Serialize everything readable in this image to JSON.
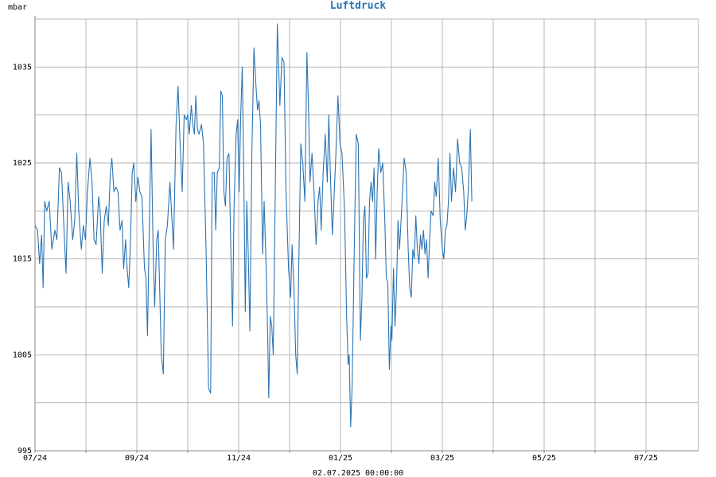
{
  "chart_data": {
    "type": "line",
    "title": "Luftdruck",
    "ylabel": "mbar",
    "footer": "02.07.2025 00:00:00",
    "ylim": [
      995,
      1040
    ],
    "y_ticks": [
      995,
      1005,
      1015,
      1025,
      1035
    ],
    "x_ticks": [
      {
        "label": "07/24",
        "month_index": 0
      },
      {
        "label": "09/24",
        "month_index": 2
      },
      {
        "label": "11/24",
        "month_index": 4
      },
      {
        "label": "01/25",
        "month_index": 6
      },
      {
        "label": "03/25",
        "month_index": 8
      },
      {
        "label": "05/25",
        "month_index": 10
      },
      {
        "label": "07/25",
        "month_index": 12
      }
    ],
    "grid": true,
    "colors": {
      "line": "#2b74b4",
      "title": "#2b74b4",
      "grid": "#b4b4b4",
      "axis": "#888888"
    },
    "series": [
      {
        "points": [
          [
            0.0,
            1018.5
          ],
          [
            0.05,
            1018
          ],
          [
            0.09,
            1014.5
          ],
          [
            0.13,
            1017.5
          ],
          [
            0.16,
            1012
          ],
          [
            0.19,
            1021
          ],
          [
            0.23,
            1020
          ],
          [
            0.28,
            1021
          ],
          [
            0.33,
            1016
          ],
          [
            0.39,
            1018
          ],
          [
            0.43,
            1017
          ],
          [
            0.48,
            1024.5
          ],
          [
            0.52,
            1024
          ],
          [
            0.57,
            1018
          ],
          [
            0.61,
            1013.5
          ],
          [
            0.65,
            1023
          ],
          [
            0.69,
            1021
          ],
          [
            0.74,
            1017
          ],
          [
            0.78,
            1019
          ],
          [
            0.82,
            1026
          ],
          [
            0.86,
            1020
          ],
          [
            0.91,
            1016
          ],
          [
            0.95,
            1018.5
          ],
          [
            0.99,
            1017
          ],
          [
            1.03,
            1022
          ],
          [
            1.08,
            1025.5
          ],
          [
            1.12,
            1023
          ],
          [
            1.16,
            1017
          ],
          [
            1.2,
            1016.5
          ],
          [
            1.25,
            1021.5
          ],
          [
            1.28,
            1020
          ],
          [
            1.32,
            1013.5
          ],
          [
            1.36,
            1019
          ],
          [
            1.4,
            1020.5
          ],
          [
            1.44,
            1018.5
          ],
          [
            1.48,
            1024
          ],
          [
            1.51,
            1025.5
          ],
          [
            1.55,
            1022
          ],
          [
            1.59,
            1022.5
          ],
          [
            1.63,
            1022
          ],
          [
            1.67,
            1018
          ],
          [
            1.71,
            1019
          ],
          [
            1.74,
            1014
          ],
          [
            1.78,
            1017
          ],
          [
            1.81,
            1014
          ],
          [
            1.84,
            1012
          ],
          [
            1.87,
            1016
          ],
          [
            1.91,
            1024
          ],
          [
            1.94,
            1025
          ],
          [
            1.98,
            1021
          ],
          [
            2.02,
            1023.5
          ],
          [
            2.06,
            1022
          ],
          [
            2.1,
            1021.5
          ],
          [
            2.15,
            1014
          ],
          [
            2.18,
            1013
          ],
          [
            2.21,
            1007
          ],
          [
            2.24,
            1017
          ],
          [
            2.28,
            1028.5
          ],
          [
            2.32,
            1016
          ],
          [
            2.35,
            1010
          ],
          [
            2.39,
            1017
          ],
          [
            2.42,
            1018
          ],
          [
            2.45,
            1011.5
          ],
          [
            2.48,
            1005
          ],
          [
            2.52,
            1003
          ],
          [
            2.56,
            1017
          ],
          [
            2.6,
            1018.5
          ],
          [
            2.65,
            1023
          ],
          [
            2.69,
            1019
          ],
          [
            2.72,
            1016
          ],
          [
            2.77,
            1029
          ],
          [
            2.81,
            1033
          ],
          [
            2.85,
            1027
          ],
          [
            2.89,
            1022
          ],
          [
            2.93,
            1030
          ],
          [
            2.97,
            1029.5
          ],
          [
            3.0,
            1030
          ],
          [
            3.03,
            1028
          ],
          [
            3.07,
            1031
          ],
          [
            3.1,
            1029
          ],
          [
            3.13,
            1028
          ],
          [
            3.16,
            1032
          ],
          [
            3.19,
            1028.5
          ],
          [
            3.22,
            1028
          ],
          [
            3.27,
            1029
          ],
          [
            3.31,
            1027
          ],
          [
            3.36,
            1016
          ],
          [
            3.41,
            1001.5
          ],
          [
            3.45,
            1001
          ],
          [
            3.48,
            1024
          ],
          [
            3.52,
            1024
          ],
          [
            3.55,
            1018
          ],
          [
            3.58,
            1024
          ],
          [
            3.62,
            1024.5
          ],
          [
            3.65,
            1032.5
          ],
          [
            3.68,
            1032
          ],
          [
            3.71,
            1022
          ],
          [
            3.74,
            1020.5
          ],
          [
            3.77,
            1025.5
          ],
          [
            3.81,
            1026
          ],
          [
            3.85,
            1015
          ],
          [
            3.88,
            1008
          ],
          [
            3.91,
            1020.5
          ],
          [
            3.95,
            1028
          ],
          [
            3.98,
            1029.5
          ],
          [
            4.01,
            1022
          ],
          [
            4.04,
            1030
          ],
          [
            4.07,
            1035
          ],
          [
            4.1,
            1024
          ],
          [
            4.13,
            1009.5
          ],
          [
            4.16,
            1021
          ],
          [
            4.19,
            1015
          ],
          [
            4.22,
            1007.5
          ],
          [
            4.26,
            1026
          ],
          [
            4.3,
            1037
          ],
          [
            4.34,
            1033
          ],
          [
            4.37,
            1030.5
          ],
          [
            4.4,
            1031.5
          ],
          [
            4.43,
            1029
          ],
          [
            4.47,
            1015.5
          ],
          [
            4.5,
            1021
          ],
          [
            4.54,
            1014
          ],
          [
            4.57,
            1007
          ],
          [
            4.59,
            1000.5
          ],
          [
            4.62,
            1009
          ],
          [
            4.65,
            1008
          ],
          [
            4.68,
            1005
          ],
          [
            4.71,
            1018
          ],
          [
            4.76,
            1039.5
          ],
          [
            4.81,
            1031
          ],
          [
            4.85,
            1036
          ],
          [
            4.89,
            1035.5
          ],
          [
            4.93,
            1022
          ],
          [
            4.98,
            1014
          ],
          [
            5.02,
            1011
          ],
          [
            5.05,
            1016.5
          ],
          [
            5.09,
            1011
          ],
          [
            5.12,
            1005
          ],
          [
            5.15,
            1003
          ],
          [
            5.18,
            1014
          ],
          [
            5.22,
            1027
          ],
          [
            5.26,
            1025
          ],
          [
            5.3,
            1021
          ],
          [
            5.34,
            1036.5
          ],
          [
            5.37,
            1031
          ],
          [
            5.4,
            1023
          ],
          [
            5.44,
            1026
          ],
          [
            5.48,
            1022
          ],
          [
            5.52,
            1016.5
          ],
          [
            5.56,
            1021
          ],
          [
            5.59,
            1022.5
          ],
          [
            5.62,
            1018
          ],
          [
            5.66,
            1024
          ],
          [
            5.7,
            1028
          ],
          [
            5.74,
            1023
          ],
          [
            5.77,
            1030
          ],
          [
            5.8,
            1024
          ],
          [
            5.84,
            1017.5
          ],
          [
            5.87,
            1021
          ],
          [
            5.91,
            1026
          ],
          [
            5.95,
            1032
          ],
          [
            5.99,
            1027
          ],
          [
            6.03,
            1026
          ],
          [
            6.08,
            1020
          ],
          [
            6.12,
            1009
          ],
          [
            6.15,
            1004
          ],
          [
            6.17,
            1005
          ],
          [
            6.2,
            997.5
          ],
          [
            6.23,
            1002
          ],
          [
            6.27,
            1016
          ],
          [
            6.31,
            1028
          ],
          [
            6.35,
            1027
          ],
          [
            6.39,
            1006.5
          ],
          [
            6.42,
            1011
          ],
          [
            6.45,
            1019
          ],
          [
            6.48,
            1020.5
          ],
          [
            6.51,
            1013
          ],
          [
            6.54,
            1013.5
          ],
          [
            6.57,
            1021
          ],
          [
            6.6,
            1023
          ],
          [
            6.63,
            1021
          ],
          [
            6.66,
            1024.5
          ],
          [
            6.69,
            1015
          ],
          [
            6.72,
            1022
          ],
          [
            6.75,
            1026.5
          ],
          [
            6.79,
            1024
          ],
          [
            6.83,
            1025
          ],
          [
            6.87,
            1019
          ],
          [
            6.9,
            1013
          ],
          [
            6.93,
            1012.5
          ],
          [
            6.96,
            1003.5
          ],
          [
            6.99,
            1008
          ],
          [
            7.01,
            1006.5
          ],
          [
            7.04,
            1014
          ],
          [
            7.07,
            1008
          ],
          [
            7.1,
            1012
          ],
          [
            7.13,
            1019
          ],
          [
            7.16,
            1016
          ],
          [
            7.2,
            1020
          ],
          [
            7.25,
            1025.5
          ],
          [
            7.29,
            1024
          ],
          [
            7.33,
            1016
          ],
          [
            7.36,
            1012
          ],
          [
            7.39,
            1011
          ],
          [
            7.42,
            1016
          ],
          [
            7.45,
            1015
          ],
          [
            7.48,
            1019.5
          ],
          [
            7.51,
            1016
          ],
          [
            7.54,
            1014.5
          ],
          [
            7.57,
            1017.5
          ],
          [
            7.6,
            1016
          ],
          [
            7.63,
            1018
          ],
          [
            7.66,
            1015.5
          ],
          [
            7.69,
            1017
          ],
          [
            7.72,
            1013
          ],
          [
            7.75,
            1017
          ],
          [
            7.78,
            1020
          ],
          [
            7.82,
            1019.5
          ],
          [
            7.85,
            1023
          ],
          [
            7.88,
            1021.5
          ],
          [
            7.92,
            1025.5
          ],
          [
            7.96,
            1019
          ],
          [
            8.0,
            1016
          ],
          [
            8.03,
            1015
          ],
          [
            8.06,
            1018
          ],
          [
            8.09,
            1018.5
          ],
          [
            8.12,
            1021
          ],
          [
            8.15,
            1026
          ],
          [
            8.18,
            1021
          ],
          [
            8.22,
            1024.5
          ],
          [
            8.26,
            1022
          ],
          [
            8.3,
            1027.5
          ],
          [
            8.34,
            1025
          ],
          [
            8.38,
            1024.5
          ],
          [
            8.42,
            1022
          ],
          [
            8.45,
            1018
          ],
          [
            8.48,
            1019.5
          ],
          [
            8.51,
            1022
          ],
          [
            8.55,
            1028.5
          ],
          [
            8.58,
            1021
          ]
        ]
      }
    ]
  }
}
